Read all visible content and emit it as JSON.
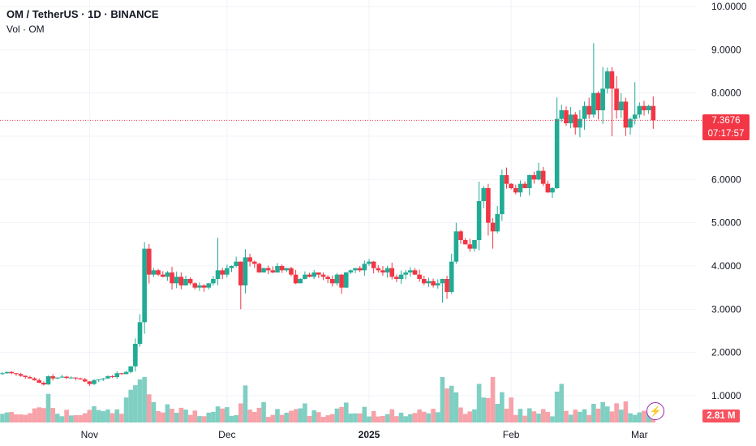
{
  "legend": {
    "title": "OM / TetherUS · 1D · BINANCE",
    "volume_label": "Vol · OM"
  },
  "last_price": {
    "value": "7.3676",
    "countdown": "07:17:57"
  },
  "volume_badge": "2.81 M",
  "icons": {
    "flash": "lightning-bolt-icon"
  },
  "colors": {
    "up": "#22ab94",
    "down": "#f23645",
    "up_volume": "#7fcfc2",
    "down_volume": "#f7a1a8",
    "grid": "#f0f3fa"
  },
  "chart_data": {
    "type": "candlestick",
    "title": "OM / TetherUS · 1D · BINANCE",
    "ylim": [
      0.7,
      10.1
    ],
    "y_ticks": [
      "1.0000",
      "2.0000",
      "3.0000",
      "4.0000",
      "5.0000",
      "6.0000",
      "7.0000",
      "8.0000",
      "9.0000",
      "10.0000"
    ],
    "x_ticks": [
      {
        "label": "Nov",
        "date": "2024-11-01"
      },
      {
        "label": "Dec",
        "date": "2024-12-01"
      },
      {
        "label": "2025",
        "date": "2025-01-01"
      },
      {
        "label": "Feb",
        "date": "2025-02-01"
      },
      {
        "label": "Mar",
        "date": "2025-03-01"
      }
    ],
    "grid": true,
    "x_start": "2024-10-13",
    "last_price": 7.3676,
    "closes": [
      1.52,
      1.55,
      1.52,
      1.5,
      1.46,
      1.43,
      1.4,
      1.36,
      1.3,
      1.26,
      1.45,
      1.4,
      1.42,
      1.44,
      1.41,
      1.42,
      1.4,
      1.38,
      1.33,
      1.27,
      1.36,
      1.38,
      1.4,
      1.45,
      1.43,
      1.52,
      1.5,
      1.55,
      1.68,
      2.2,
      2.7,
      4.4,
      3.8,
      3.9,
      3.8,
      3.75,
      3.85,
      3.6,
      3.75,
      3.55,
      3.7,
      3.6,
      3.5,
      3.55,
      3.5,
      3.6,
      3.7,
      3.9,
      3.8,
      3.95,
      4.0,
      4.1,
      3.55,
      4.2,
      4.1,
      4.05,
      3.85,
      3.95,
      3.9,
      3.85,
      4.0,
      3.9,
      3.95,
      3.8,
      3.6,
      3.7,
      3.8,
      3.75,
      3.85,
      3.8,
      3.75,
      3.7,
      3.6,
      3.8,
      3.5,
      3.85,
      3.9,
      3.95,
      3.9,
      4.05,
      4.1,
      3.95,
      3.9,
      3.85,
      3.95,
      3.75,
      3.7,
      3.8,
      3.85,
      3.9,
      3.8,
      3.7,
      3.6,
      3.65,
      3.55,
      3.6,
      3.7,
      3.4,
      4.1,
      4.8,
      4.6,
      4.5,
      4.4,
      4.6,
      5.5,
      5.8,
      5.0,
      4.8,
      5.2,
      6.1,
      5.9,
      5.8,
      5.7,
      5.9,
      5.8,
      6.1,
      6.0,
      6.2,
      5.9,
      5.7,
      5.8,
      7.4,
      7.6,
      7.3,
      7.5,
      7.2,
      7.4,
      7.7,
      7.5,
      8.0,
      7.6,
      8.1,
      8.5,
      8.1,
      7.6,
      7.8,
      7.2,
      7.4,
      7.5,
      7.7,
      7.6,
      7.7,
      7.37
    ],
    "volume_max_label": "2.81 M"
  }
}
